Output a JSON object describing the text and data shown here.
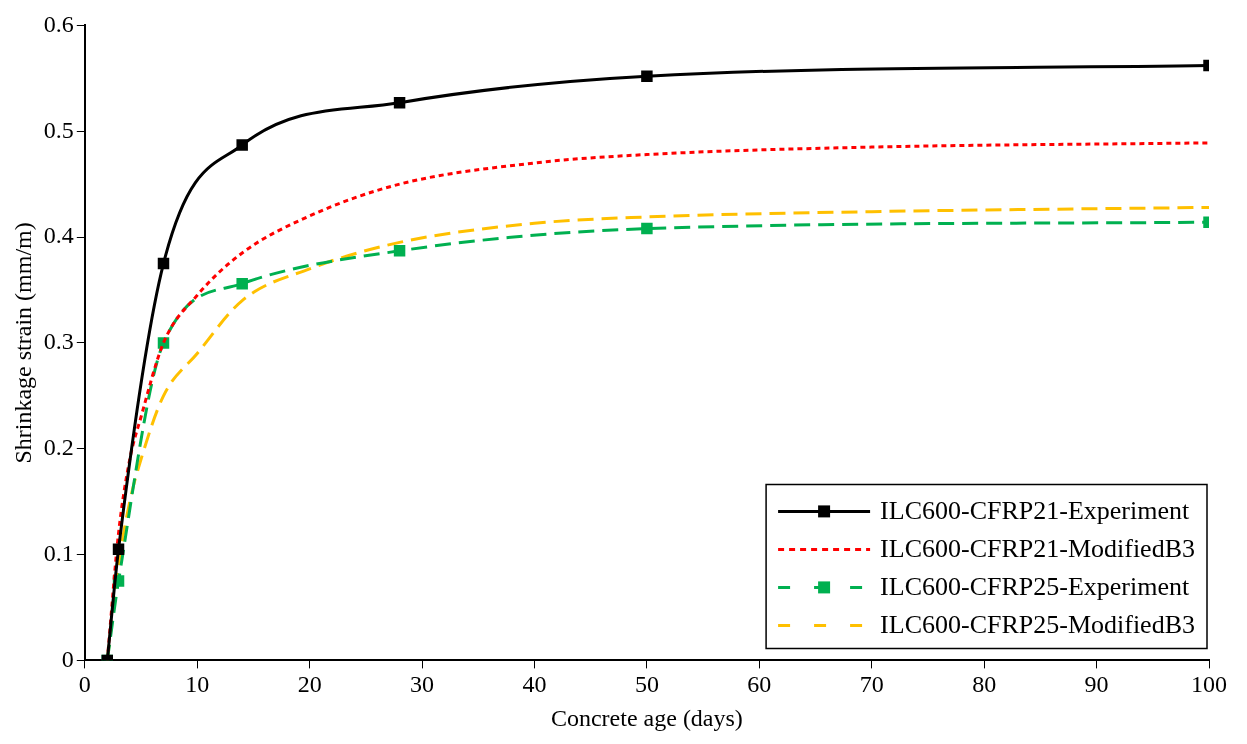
{
  "chart_data": {
    "type": "line",
    "xlabel": "Concrete age (days)",
    "ylabel": "Shrinkage strain (mm/m)",
    "xlim": [
      0,
      100
    ],
    "xticks": [
      0,
      10,
      20,
      30,
      40,
      50,
      60,
      70,
      80,
      90,
      100
    ],
    "ylim": [
      0,
      0.6
    ],
    "yticks": [
      0,
      0.1,
      0.2,
      0.3,
      0.4,
      0.5,
      0.6
    ],
    "grid": false,
    "legend": "bottom right",
    "series": [
      {
        "name": "ILC600-CFRP21-Experiment",
        "color": "#000000",
        "marker": "square",
        "line_style": "solid",
        "x": [
          2,
          3,
          7,
          14,
          28,
          50,
          100
        ],
        "values": [
          0,
          0.105,
          0.375,
          0.487,
          0.527,
          0.552,
          0.562
        ]
      },
      {
        "name": "ILC600-CFRP21-ModifiedB3",
        "color": "#ff0000",
        "marker": "none",
        "line_style": "dotted",
        "x": [
          2,
          3,
          4,
          5,
          7,
          10,
          14,
          20,
          28,
          40,
          50,
          70,
          100
        ],
        "values": [
          0,
          0.12,
          0.19,
          0.23,
          0.3,
          0.345,
          0.385,
          0.42,
          0.45,
          0.47,
          0.478,
          0.485,
          0.489
        ]
      },
      {
        "name": "ILC600-CFRP25-Experiment",
        "color": "#00b050",
        "marker": "square",
        "line_style": "dashed",
        "x": [
          2,
          3,
          7,
          14,
          28,
          50,
          100
        ],
        "values": [
          0,
          0.075,
          0.3,
          0.356,
          0.387,
          0.408,
          0.414
        ]
      },
      {
        "name": "ILC600-CFRP25-ModifiedB3",
        "color": "#ffc000",
        "marker": "none",
        "line_style": "dashed",
        "x": [
          2,
          3,
          4,
          5,
          7,
          10,
          14,
          20,
          28,
          40,
          50,
          70,
          100
        ],
        "values": [
          0,
          0.09,
          0.15,
          0.19,
          0.25,
          0.29,
          0.34,
          0.37,
          0.395,
          0.413,
          0.419,
          0.424,
          0.428
        ]
      }
    ]
  }
}
